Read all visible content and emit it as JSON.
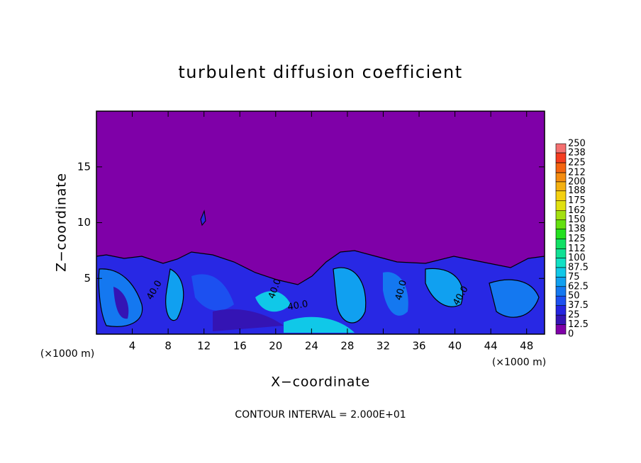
{
  "chart_data": {
    "type": "contour",
    "title": "turbulent diffusion coefficient",
    "x_label": "X−coordinate",
    "y_label": "Z−coordinate",
    "x_unit": "(×1000 m)",
    "y_unit": "(×1000 m)",
    "xlim": [
      0,
      50
    ],
    "ylim": [
      0,
      20
    ],
    "xticks": [
      4,
      8,
      12,
      16,
      20,
      24,
      28,
      32,
      36,
      40,
      44,
      48
    ],
    "yticks": [
      5,
      10,
      15
    ],
    "colorbar": {
      "levels": [
        0,
        12.5,
        25,
        37.5,
        50,
        62.5,
        75,
        87.5,
        100,
        112,
        125,
        138,
        150,
        162,
        175,
        188,
        200,
        212,
        225,
        238,
        250
      ],
      "colors": [
        "#7f00a8",
        "#3414b4",
        "#2424e0",
        "#1c50f0",
        "#1478f0",
        "#10a0f0",
        "#10c8e8",
        "#10e0c4",
        "#10e094",
        "#10e064",
        "#24e020",
        "#64e010",
        "#a4e010",
        "#e0e010",
        "#f4d010",
        "#f4b010",
        "#f48c10",
        "#f46410",
        "#f43c20",
        "#f47070"
      ]
    },
    "contour_labels": [
      "40.0",
      "40.0",
      "40.0",
      "40.0",
      "40.0"
    ],
    "footer": "CONTOUR INTERVAL = 2.000E+01"
  }
}
